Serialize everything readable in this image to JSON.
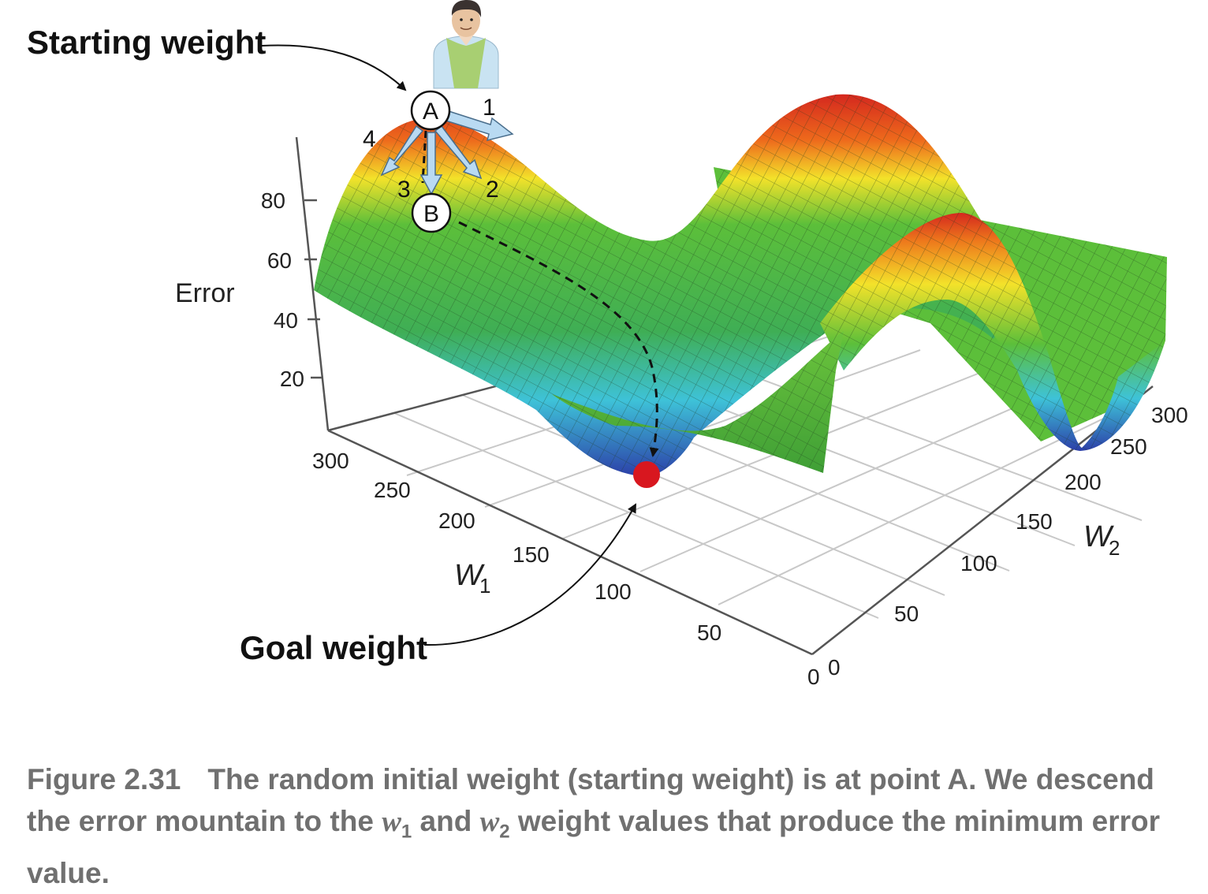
{
  "labels": {
    "starting_weight": "Starting weight",
    "goal_weight": "Goal weight",
    "point_a": "A",
    "point_b": "B",
    "dir_1": "1",
    "dir_2": "2",
    "dir_3": "3",
    "dir_4": "4"
  },
  "axes": {
    "z_title": "Error",
    "z_ticks": [
      "80",
      "60",
      "40",
      "20"
    ],
    "w1_var": "W",
    "w1_sub": "1",
    "w1_ticks": [
      "300",
      "250",
      "200",
      "150",
      "100",
      "50",
      "0"
    ],
    "w2_var": "W",
    "w2_sub": "2",
    "w2_ticks": [
      "300",
      "250",
      "200",
      "150",
      "100",
      "50",
      "0"
    ]
  },
  "caption": {
    "figure_label": "Figure 2.31",
    "part1": "The random initial weight (starting weight) is at point A. We descend the error mountain to the ",
    "var1": "w",
    "sub1": "1",
    "part2": " and ",
    "var2": "w",
    "sub2": "2",
    "part3": " weight values that produce the minimum error value."
  },
  "colors": {
    "surface_low": "#2c3fa8",
    "surface_mid": "#3ec2d8",
    "surface_green": "#5cbf3a",
    "surface_yellow": "#f3e22a",
    "surface_high": "#d4281e",
    "goal_dot": "#d8171f",
    "arrow_fill": "#b9daf2",
    "caption_text": "#707070"
  },
  "icons": [
    "person-icon"
  ]
}
